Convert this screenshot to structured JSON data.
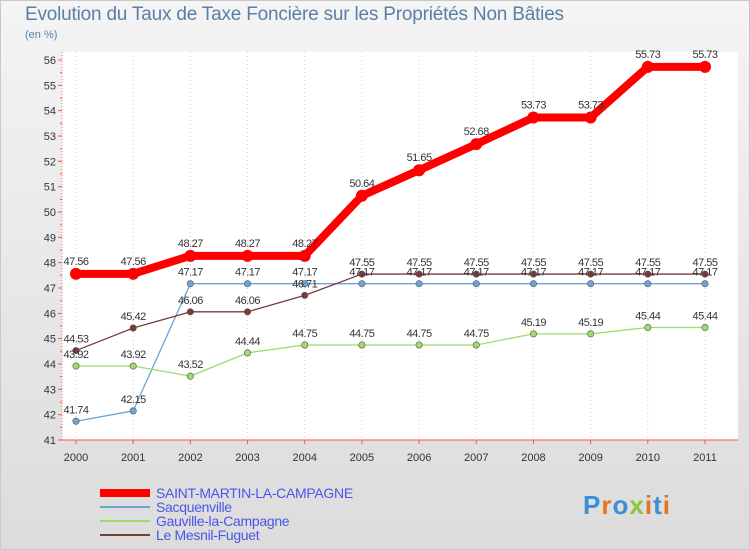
{
  "chart_data": {
    "type": "line",
    "title": "Evolution du Taux de Taxe Foncière sur les Propriétés Non Bâties",
    "ylabel": "(en %)",
    "xlabel": "",
    "ylim": [
      41,
      56
    ],
    "yticks": [
      41,
      42,
      43,
      44,
      45,
      46,
      47,
      48,
      49,
      50,
      51,
      52,
      53,
      54,
      55,
      56
    ],
    "categories": [
      "2000",
      "2001",
      "2002",
      "2003",
      "2004",
      "2005",
      "2006",
      "2007",
      "2008",
      "2009",
      "2010",
      "2011"
    ],
    "series": [
      {
        "name": "SAINT-MARTIN-LA-CAMPAGNE",
        "color": "#ff0000",
        "values": [
          47.56,
          47.56,
          48.27,
          48.27,
          48.27,
          50.64,
          51.65,
          52.68,
          53.73,
          53.73,
          55.73,
          55.73
        ],
        "labels": [
          "47.56",
          "47.56",
          "48.27",
          "48.27",
          "48.27",
          "50.64",
          "51.65",
          "52.68",
          "53.73",
          "53.73",
          "55.73",
          "55.73"
        ]
      },
      {
        "name": "Sacquenville",
        "color": "#6aa5d6",
        "values": [
          41.74,
          42.15,
          47.17,
          47.17,
          47.17,
          47.17,
          47.17,
          47.17,
          47.17,
          47.17,
          47.17,
          47.17
        ],
        "labels": [
          "41.74",
          "42.15",
          "47.17",
          "47.17",
          "47.17",
          "47.17",
          "47.17",
          "47.17",
          "47.17",
          "47.17",
          "47.17",
          "47.17"
        ]
      },
      {
        "name": "Gauville-la-Campagne",
        "color": "#9ddc6a",
        "values": [
          43.92,
          43.92,
          43.52,
          44.44,
          44.75,
          44.75,
          44.75,
          44.75,
          45.19,
          45.19,
          45.44,
          45.44
        ],
        "labels": [
          "43.92",
          "43.92",
          "43.52",
          "44.44",
          "44.75",
          "44.75",
          "44.75",
          "44.75",
          "45.19",
          "45.19",
          "45.44",
          "45.44"
        ]
      },
      {
        "name": "Le Mesnil-Fuguet",
        "color": "#7a3a3a",
        "values": [
          44.53,
          45.42,
          46.06,
          46.06,
          46.71,
          47.55,
          47.55,
          47.55,
          47.55,
          47.55,
          47.55,
          47.55
        ],
        "labels": [
          "44.53",
          "45.42",
          "46.06",
          "46.06",
          "46.71",
          "47.55",
          "47.55",
          "47.55",
          "47.55",
          "47.55",
          "47.55",
          "47.55"
        ]
      }
    ]
  },
  "legend": {
    "items": [
      {
        "name": "SAINT-MARTIN-LA-CAMPAGNE",
        "color": "#ff0000"
      },
      {
        "name": "Sacquenville",
        "color": "#6aa5d6"
      },
      {
        "name": "Gauville-la-Campagne",
        "color": "#9ddc6a"
      },
      {
        "name": "Le Mesnil-Fuguet",
        "color": "#7a3a3a"
      }
    ]
  },
  "logo": {
    "text": "Proxiti"
  }
}
